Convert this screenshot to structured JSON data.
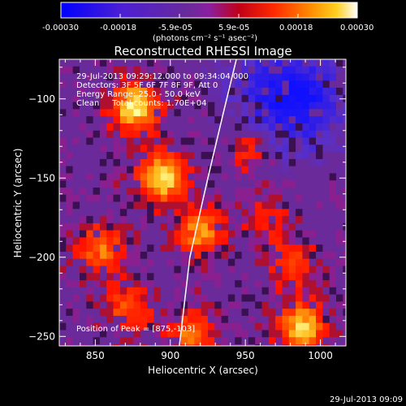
{
  "colorbar": {
    "tick_labels": [
      "-0.00030",
      "-0.00018",
      "-5.9e-05",
      "5.9e-05",
      "0.00018",
      "0.00030"
    ],
    "unit_label": "(photons cm⁻² s⁻¹ asec⁻²)",
    "range": [
      -0.0003,
      0.0003
    ]
  },
  "info": {
    "time_range": "29-Jul-2013 09:29:12.000 to 09:34:04.000",
    "detectors": "Detectors: 3F 5F 6F 7F 8F 9F, Att 0",
    "energy": "Energy Range: 25.0 - 50.0 keV",
    "clean": "Clean     Total counts: 1.70E+04",
    "peak": "Position of Peak = [875,-103]"
  },
  "footer": {
    "timestamp": "29-Jul-2013 09:09"
  },
  "chart_data": {
    "type": "heatmap",
    "title": "Reconstructed RHESSI Image",
    "xlabel": "Heliocentric X (arcsec)",
    "ylabel": "Heliocentric Y (arcsec)",
    "xlim": [
      826,
      1017
    ],
    "ylim": [
      -256,
      -75
    ],
    "x_ticks": [
      850,
      900,
      950,
      1000
    ],
    "y_ticks": [
      -100,
      -150,
      -200,
      -250
    ],
    "colormap": [
      "#0000ff",
      "#6a2a9a",
      "#8030a0",
      "#c01020",
      "#ff2000",
      "#ff8000",
      "#ffff60",
      "#ffffff"
    ],
    "background_level": "purple",
    "sources": [
      {
        "x": 875,
        "y": -103,
        "intensity": 1.0
      },
      {
        "x": 892,
        "y": -148,
        "intensity": 0.95
      },
      {
        "x": 918,
        "y": -182,
        "intensity": 0.7
      },
      {
        "x": 851,
        "y": -192,
        "intensity": 0.65
      },
      {
        "x": 985,
        "y": -242,
        "intensity": 0.9
      },
      {
        "x": 870,
        "y": -230,
        "intensity": 0.55
      },
      {
        "x": 912,
        "y": -246,
        "intensity": 0.6
      },
      {
        "x": 980,
        "y": -202,
        "intensity": 0.5
      },
      {
        "x": 950,
        "y": -128,
        "intensity": 0.45
      },
      {
        "x": 962,
        "y": -172,
        "intensity": 0.35
      }
    ],
    "negative_regions": [
      {
        "x": 985,
        "y": -100,
        "intensity": 0.8
      },
      {
        "x": 960,
        "y": -90,
        "intensity": 0.4
      }
    ],
    "limb_curve": [
      [
        944,
        -75
      ],
      [
        935,
        -110
      ],
      [
        925,
        -150
      ],
      [
        913,
        -200
      ],
      [
        906,
        -256
      ]
    ]
  }
}
